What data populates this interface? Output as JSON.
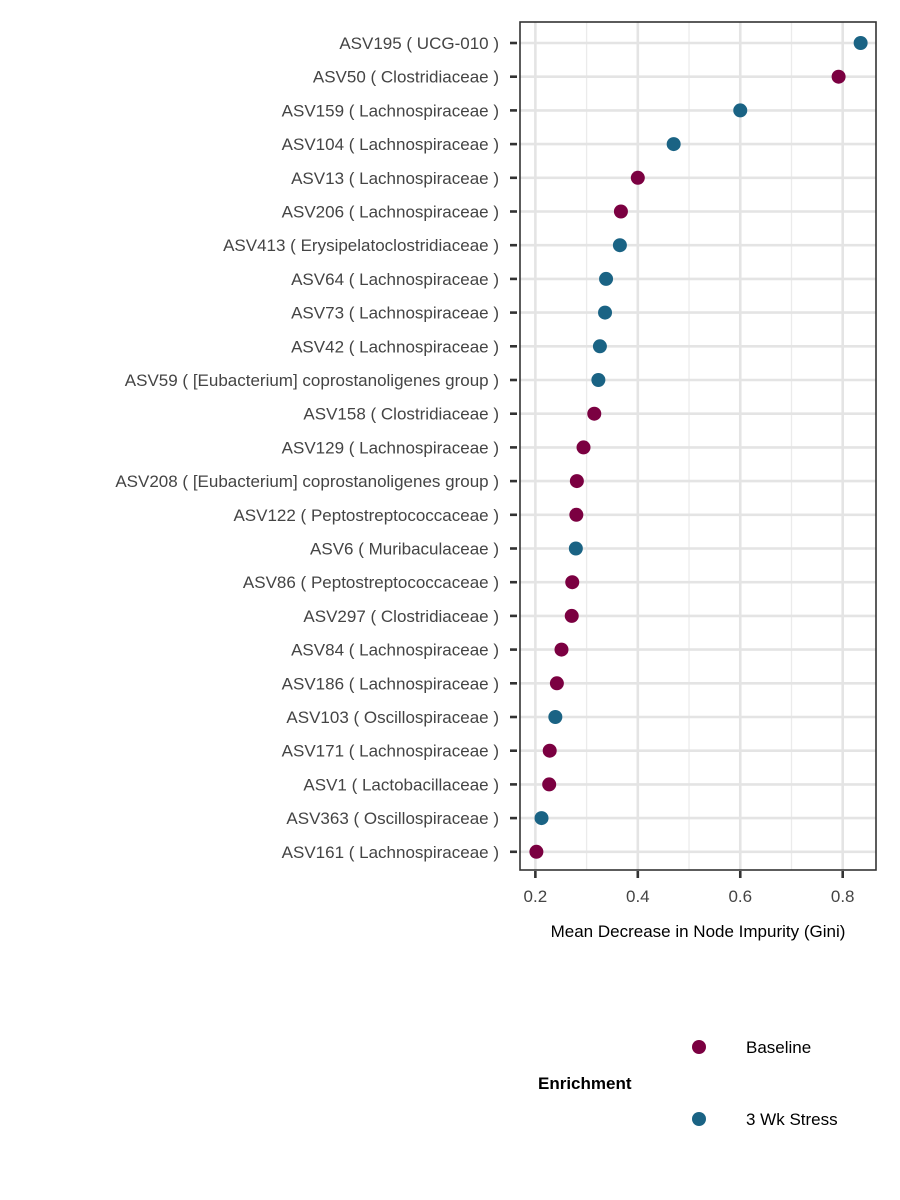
{
  "chart_data": {
    "type": "scatter",
    "xlabel": "Mean Decrease in Node Impurity (Gini)",
    "xlim": [
      0.17,
      0.865
    ],
    "xticks": [
      0.2,
      0.4,
      0.6,
      0.8
    ],
    "xtick_labels": [
      "0.2",
      "0.4",
      "0.6",
      "0.8"
    ],
    "grid": true,
    "legend": {
      "title": "Enrichment",
      "position": "bottom",
      "entries": [
        {
          "label": "Baseline",
          "color": "#7B0041"
        },
        {
          "label": "3 Wk Stress",
          "color": "#1A6384"
        }
      ]
    },
    "points": [
      {
        "label": "ASV195  ( UCG-010 )",
        "value": 0.835,
        "group": "3 Wk Stress"
      },
      {
        "label": "ASV50  ( Clostridiaceae )",
        "value": 0.792,
        "group": "Baseline"
      },
      {
        "label": "ASV159  ( Lachnospiraceae )",
        "value": 0.6,
        "group": "3 Wk Stress"
      },
      {
        "label": "ASV104  ( Lachnospiraceae )",
        "value": 0.47,
        "group": "3 Wk Stress"
      },
      {
        "label": "ASV13  ( Lachnospiraceae )",
        "value": 0.4,
        "group": "Baseline"
      },
      {
        "label": "ASV206  ( Lachnospiraceae )",
        "value": 0.367,
        "group": "Baseline"
      },
      {
        "label": "ASV413  ( Erysipelatoclostridiaceae )",
        "value": 0.365,
        "group": "3 Wk Stress"
      },
      {
        "label": "ASV64  ( Lachnospiraceae )",
        "value": 0.338,
        "group": "3 Wk Stress"
      },
      {
        "label": "ASV73  ( Lachnospiraceae )",
        "value": 0.336,
        "group": "3 Wk Stress"
      },
      {
        "label": "ASV42  ( Lachnospiraceae )",
        "value": 0.326,
        "group": "3 Wk Stress"
      },
      {
        "label": "ASV59  ( [Eubacterium] coprostanoligenes group )",
        "value": 0.323,
        "group": "3 Wk Stress"
      },
      {
        "label": "ASV158  ( Clostridiaceae )",
        "value": 0.315,
        "group": "Baseline"
      },
      {
        "label": "ASV129  ( Lachnospiraceae )",
        "value": 0.294,
        "group": "Baseline"
      },
      {
        "label": "ASV208  ( [Eubacterium] coprostanoligenes group )",
        "value": 0.281,
        "group": "Baseline"
      },
      {
        "label": "ASV122  ( Peptostreptococcaceae )",
        "value": 0.28,
        "group": "Baseline"
      },
      {
        "label": "ASV6  ( Muribaculaceae )",
        "value": 0.279,
        "group": "3 Wk Stress"
      },
      {
        "label": "ASV86  ( Peptostreptococcaceae )",
        "value": 0.272,
        "group": "Baseline"
      },
      {
        "label": "ASV297  ( Clostridiaceae )",
        "value": 0.271,
        "group": "Baseline"
      },
      {
        "label": "ASV84  ( Lachnospiraceae )",
        "value": 0.251,
        "group": "Baseline"
      },
      {
        "label": "ASV186  ( Lachnospiraceae )",
        "value": 0.242,
        "group": "Baseline"
      },
      {
        "label": "ASV103  ( Oscillospiraceae )",
        "value": 0.239,
        "group": "3 Wk Stress"
      },
      {
        "label": "ASV171  ( Lachnospiraceae )",
        "value": 0.228,
        "group": "Baseline"
      },
      {
        "label": "ASV1  ( Lactobacillaceae )",
        "value": 0.227,
        "group": "Baseline"
      },
      {
        "label": "ASV363  ( Oscillospiraceae )",
        "value": 0.212,
        "group": "3 Wk Stress"
      },
      {
        "label": "ASV161  ( Lachnospiraceae )",
        "value": 0.202,
        "group": "Baseline"
      }
    ]
  }
}
